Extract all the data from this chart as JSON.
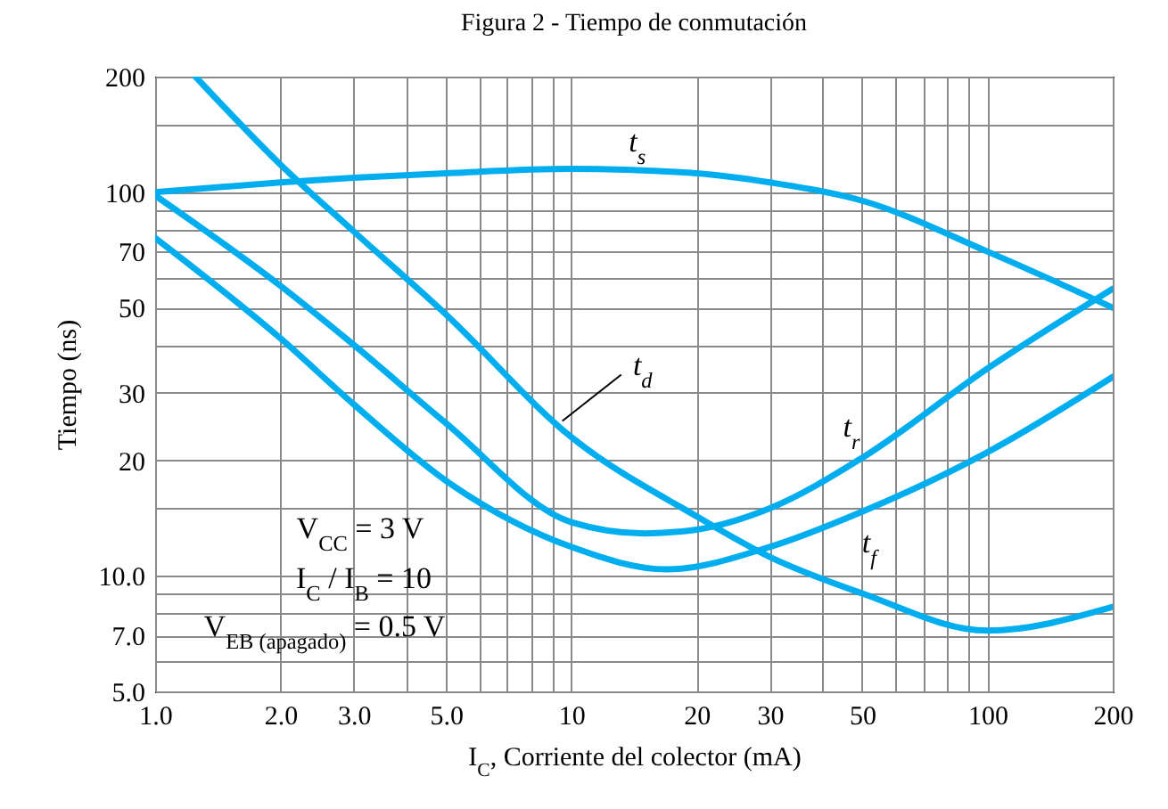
{
  "chart_data": {
    "type": "line",
    "title": "Figura 2 - Tiempo de conmutación",
    "xlabel": "I$_{C}$, Corriente del colector (mA)",
    "ylabel": "Tiempo (ns)",
    "log": "xy",
    "grid": true,
    "line_style": "solid",
    "xlim": [
      1,
      200
    ],
    "ylim": [
      5,
      200
    ],
    "xticks": [
      {
        "value": 1,
        "label": "1.0"
      },
      {
        "value": 2,
        "label": "2.0"
      },
      {
        "value": 3,
        "label": "3.0"
      },
      {
        "value": 4,
        "label": null
      },
      {
        "value": 5,
        "label": "5.0"
      },
      {
        "value": 6,
        "label": null
      },
      {
        "value": 7,
        "label": null
      },
      {
        "value": 8,
        "label": null
      },
      {
        "value": 9,
        "label": null
      },
      10,
      20,
      30,
      {
        "value": 40,
        "label": null
      },
      50,
      {
        "value": 60,
        "label": null
      },
      {
        "value": 70,
        "label": null
      },
      {
        "value": 80,
        "label": null
      },
      {
        "value": 90,
        "label": null
      },
      100,
      200
    ],
    "yticks": [
      {
        "value": 5,
        "label": "5.0"
      },
      {
        "value": 6,
        "label": null
      },
      {
        "value": 7,
        "label": "7.0"
      },
      {
        "value": 8,
        "label": null
      },
      {
        "value": 9,
        "label": null
      },
      {
        "value": 10,
        "label": "10.0"
      },
      {
        "value": 15,
        "label": null
      },
      20,
      30,
      {
        "value": 40,
        "label": null
      },
      50,
      {
        "value": 60,
        "label": null
      },
      70,
      {
        "value": 80,
        "label": null
      },
      {
        "value": 90,
        "label": null
      },
      100,
      {
        "value": 150,
        "label": null
      },
      200
    ],
    "series": [
      {
        "name": "t$_{s}$",
        "color": "#00aeef",
        "x": [
          1,
          2,
          3,
          5,
          10,
          20,
          30,
          50,
          100,
          200
        ],
        "values": [
          100,
          106,
          109,
          112,
          115,
          112,
          106,
          95,
          70,
          50
        ]
      },
      {
        "name": "t$_{d}$",
        "color": "#00aeef",
        "x": [
          1.25,
          2,
          3,
          5,
          10,
          20,
          30,
          50,
          100,
          200
        ],
        "values": [
          200,
          118,
          79,
          48,
          23,
          14.3,
          11.2,
          9,
          7.2,
          8.3
        ]
      },
      {
        "name": "t$_{r}$",
        "color": "#00aeef",
        "x": [
          1,
          2,
          3,
          5,
          10,
          15,
          20,
          30,
          50,
          100,
          200
        ],
        "values": [
          98,
          57,
          40,
          25,
          13.8,
          12.9,
          13.2,
          15,
          20.3,
          34.7,
          56
        ]
      },
      {
        "name": "t$_{f}$",
        "color": "#00aeef",
        "x": [
          1,
          2,
          3,
          5,
          10,
          17,
          30,
          50,
          100,
          200
        ],
        "values": [
          76,
          41.6,
          28,
          17.7,
          11.9,
          10.4,
          11.9,
          14.7,
          21,
          33
        ]
      }
    ],
    "annotations": [
      "V$_{CC}$ = 3 V",
      "I$_{C}$ / I$_{B}$ = 10",
      "V$_{EB (apagado)}$ = 0.5 V"
    ]
  }
}
